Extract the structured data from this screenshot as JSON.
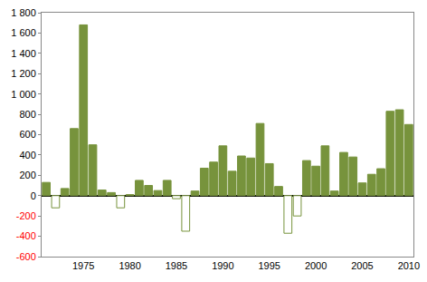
{
  "chart_data": {
    "type": "bar",
    "x": [
      1971,
      1972,
      1973,
      1974,
      1975,
      1976,
      1977,
      1978,
      1979,
      1980,
      1981,
      1982,
      1983,
      1984,
      1985,
      1986,
      1987,
      1988,
      1989,
      1990,
      1991,
      1992,
      1993,
      1994,
      1995,
      1996,
      1997,
      1998,
      1999,
      2000,
      2001,
      2002,
      2003,
      2004,
      2005,
      2006,
      2007,
      2008,
      2009,
      2010
    ],
    "values": [
      130,
      -120,
      70,
      660,
      1680,
      500,
      55,
      30,
      -120,
      10,
      150,
      100,
      50,
      150,
      -30,
      -350,
      45,
      270,
      330,
      490,
      240,
      390,
      370,
      710,
      315,
      90,
      -370,
      -200,
      345,
      290,
      490,
      45,
      425,
      380,
      125,
      210,
      265,
      830,
      845,
      700
    ],
    "color": "#77933c",
    "xlim": [
      1970.5,
      2010.5
    ],
    "xticks": [
      1975,
      1980,
      1985,
      1990,
      1995,
      2000,
      2005,
      2010
    ],
    "ylim": [
      -600,
      1800
    ],
    "yticks": [
      -600,
      -400,
      -200,
      0,
      200,
      400,
      600,
      800,
      {
        "value": 1000,
        "label": "1 000"
      },
      {
        "value": 1200,
        "label": "1 200"
      },
      {
        "value": 1400,
        "label": "1 400"
      },
      {
        "value": 1600,
        "label": "1 600"
      },
      {
        "value": 1800,
        "label": "1 800"
      }
    ],
    "grid": false
  }
}
